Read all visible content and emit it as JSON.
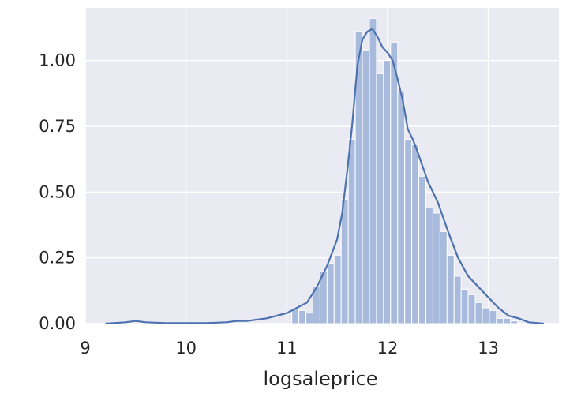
{
  "chart_data": {
    "type": "bar",
    "subtype": "histogram with density curve",
    "title": "",
    "xlabel": "logsaleprice",
    "ylabel": "",
    "xlim": [
      9.0,
      13.7
    ],
    "ylim": [
      0.0,
      1.2
    ],
    "grid": true,
    "legend": "none",
    "xticks": [
      9,
      10,
      11,
      12,
      13
    ],
    "xtick_labels": [
      "9",
      "10",
      "11",
      "12",
      "13"
    ],
    "yticks": [
      0.0,
      0.25,
      0.5,
      0.75,
      1.0
    ],
    "ytick_labels": [
      "0.00",
      "0.25",
      "0.50",
      "0.75",
      "1.00"
    ],
    "colors": {
      "background": "#eaeaf2",
      "grid": "#ffffff",
      "bar_fill": "#a9bbdd",
      "bar_edge": "#ffffff",
      "curve": "#4c72b0",
      "text": "#262626"
    },
    "histogram": {
      "bins": [
        {
          "x0": 11.05,
          "x1": 11.12,
          "y": 0.06
        },
        {
          "x0": 11.12,
          "x1": 11.19,
          "y": 0.05
        },
        {
          "x0": 11.19,
          "x1": 11.26,
          "y": 0.04
        },
        {
          "x0": 11.26,
          "x1": 11.33,
          "y": 0.14
        },
        {
          "x0": 11.33,
          "x1": 11.4,
          "y": 0.2
        },
        {
          "x0": 11.4,
          "x1": 11.47,
          "y": 0.23
        },
        {
          "x0": 11.47,
          "x1": 11.54,
          "y": 0.26
        },
        {
          "x0": 11.54,
          "x1": 11.61,
          "y": 0.47
        },
        {
          "x0": 11.61,
          "x1": 11.68,
          "y": 0.7
        },
        {
          "x0": 11.68,
          "x1": 11.75,
          "y": 1.11
        },
        {
          "x0": 11.75,
          "x1": 11.82,
          "y": 1.04
        },
        {
          "x0": 11.82,
          "x1": 11.89,
          "y": 1.16
        },
        {
          "x0": 11.89,
          "x1": 11.96,
          "y": 0.95
        },
        {
          "x0": 11.96,
          "x1": 12.03,
          "y": 1.0
        },
        {
          "x0": 12.03,
          "x1": 12.1,
          "y": 1.07
        },
        {
          "x0": 12.1,
          "x1": 12.17,
          "y": 0.88
        },
        {
          "x0": 12.17,
          "x1": 12.24,
          "y": 0.7
        },
        {
          "x0": 12.24,
          "x1": 12.31,
          "y": 0.68
        },
        {
          "x0": 12.31,
          "x1": 12.38,
          "y": 0.56
        },
        {
          "x0": 12.38,
          "x1": 12.45,
          "y": 0.44
        },
        {
          "x0": 12.45,
          "x1": 12.52,
          "y": 0.42
        },
        {
          "x0": 12.52,
          "x1": 12.59,
          "y": 0.35
        },
        {
          "x0": 12.59,
          "x1": 12.66,
          "y": 0.26
        },
        {
          "x0": 12.66,
          "x1": 12.73,
          "y": 0.18
        },
        {
          "x0": 12.73,
          "x1": 12.8,
          "y": 0.13
        },
        {
          "x0": 12.8,
          "x1": 12.87,
          "y": 0.11
        },
        {
          "x0": 12.87,
          "x1": 12.94,
          "y": 0.08
        },
        {
          "x0": 12.94,
          "x1": 13.01,
          "y": 0.06
        },
        {
          "x0": 13.01,
          "x1": 13.08,
          "y": 0.05
        },
        {
          "x0": 13.08,
          "x1": 13.15,
          "y": 0.02
        },
        {
          "x0": 13.15,
          "x1": 13.22,
          "y": 0.02
        },
        {
          "x0": 13.22,
          "x1": 13.29,
          "y": 0.01
        }
      ]
    },
    "density_curve": {
      "x": [
        9.2,
        9.4,
        9.5,
        9.6,
        9.8,
        10.0,
        10.2,
        10.4,
        10.5,
        10.6,
        10.7,
        10.8,
        10.9,
        11.0,
        11.1,
        11.2,
        11.3,
        11.4,
        11.5,
        11.55,
        11.6,
        11.65,
        11.7,
        11.75,
        11.8,
        11.85,
        11.9,
        11.95,
        12.0,
        12.05,
        12.1,
        12.15,
        12.2,
        12.25,
        12.3,
        12.4,
        12.5,
        12.6,
        12.7,
        12.8,
        12.9,
        13.0,
        13.1,
        13.2,
        13.3,
        13.4,
        13.55
      ],
      "y": [
        0.0,
        0.005,
        0.01,
        0.005,
        0.002,
        0.002,
        0.002,
        0.005,
        0.01,
        0.01,
        0.015,
        0.02,
        0.03,
        0.04,
        0.06,
        0.08,
        0.14,
        0.22,
        0.32,
        0.42,
        0.58,
        0.76,
        0.98,
        1.08,
        1.11,
        1.12,
        1.09,
        1.05,
        1.03,
        1.0,
        0.93,
        0.85,
        0.74,
        0.7,
        0.65,
        0.54,
        0.46,
        0.35,
        0.25,
        0.18,
        0.14,
        0.1,
        0.06,
        0.03,
        0.02,
        0.005,
        0.0
      ]
    }
  }
}
